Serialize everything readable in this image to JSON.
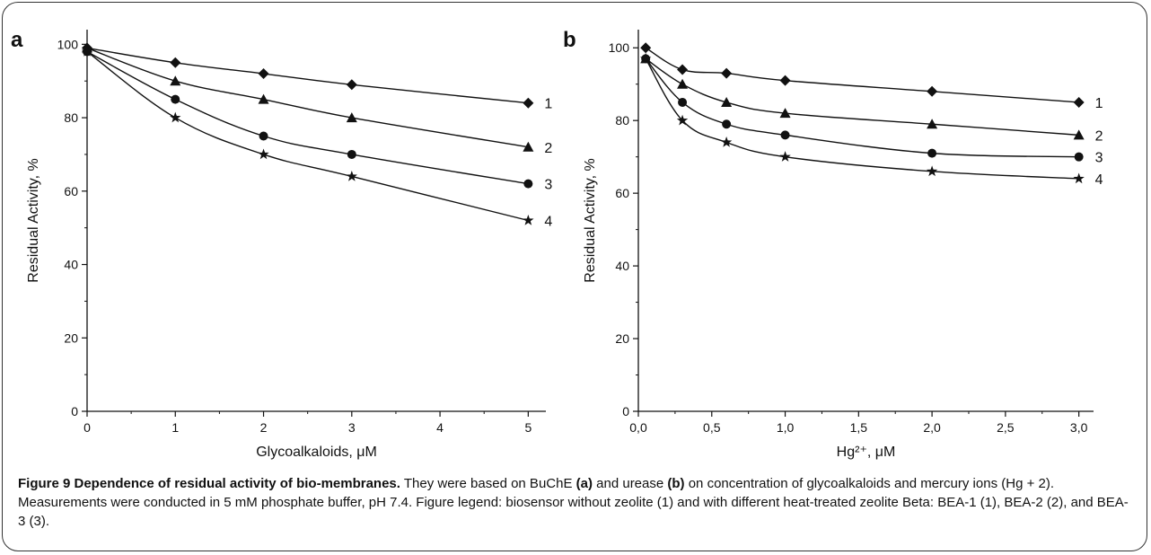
{
  "caption": {
    "figure_title": "Figure 9 Dependence of residual activity of bio-membranes.",
    "text_1": " They were based on BuChE ",
    "ref_a": "(a)",
    "text_2": " and urease ",
    "ref_b": "(b)",
    "text_3": " on concentration of glycoalkaloids and mercury ions (Hg + 2). Measurements were conducted in 5 mM phosphate buffer, pH 7.4. Figure legend: biosensor without zeolite (1) and with different heat-treated zeolite Beta: BEA-1 (1), BEA-2 (2), and BEA-3 (3)."
  },
  "chart_data": [
    {
      "type": "line",
      "panel_label": "a",
      "xlabel": "Glycoalkaloids, μM",
      "ylabel": "Residual Activity, %",
      "xlim": [
        0,
        5.2
      ],
      "ylim": [
        0,
        104
      ],
      "xticks": [
        "0",
        "1",
        "2",
        "3",
        "4",
        "5"
      ],
      "yticks": [
        "0",
        "20",
        "40",
        "60",
        "80",
        "100"
      ],
      "grid": false,
      "series": [
        {
          "name": "1",
          "marker": "diamond",
          "x": [
            0,
            1,
            2,
            3,
            5
          ],
          "y": [
            99,
            95,
            92,
            89,
            84
          ]
        },
        {
          "name": "2",
          "marker": "triangle",
          "x": [
            0,
            1,
            2,
            3,
            5
          ],
          "y": [
            99,
            90,
            85,
            80,
            72
          ]
        },
        {
          "name": "3",
          "marker": "circle",
          "x": [
            0,
            1,
            2,
            3,
            5
          ],
          "y": [
            98,
            85,
            75,
            70,
            62
          ]
        },
        {
          "name": "4",
          "marker": "star",
          "x": [
            0,
            1,
            2,
            3,
            5
          ],
          "y": [
            98,
            80,
            70,
            64,
            52
          ]
        }
      ]
    },
    {
      "type": "line",
      "panel_label": "b",
      "xlabel": "Hg²⁺, μM",
      "ylabel": "Residual Activity, %",
      "xlim": [
        0,
        3.1
      ],
      "ylim": [
        0,
        105
      ],
      "xticks": [
        "0,0",
        "0,5",
        "1,0",
        "1,5",
        "2,0",
        "2,5",
        "3,0"
      ],
      "yticks": [
        "0",
        "20",
        "40",
        "60",
        "80",
        "100"
      ],
      "grid": false,
      "series": [
        {
          "name": "1",
          "marker": "diamond",
          "x": [
            0.05,
            0.3,
            0.6,
            1.0,
            2.0,
            3.0
          ],
          "y": [
            100,
            94,
            93,
            91,
            88,
            85
          ]
        },
        {
          "name": "2",
          "marker": "triangle",
          "x": [
            0.05,
            0.3,
            0.6,
            1.0,
            2.0,
            3.0
          ],
          "y": [
            97,
            90,
            85,
            82,
            79,
            76
          ]
        },
        {
          "name": "3",
          "marker": "circle",
          "x": [
            0.05,
            0.3,
            0.6,
            1.0,
            2.0,
            3.0
          ],
          "y": [
            97,
            85,
            79,
            76,
            71,
            70
          ]
        },
        {
          "name": "4",
          "marker": "star",
          "x": [
            0.05,
            0.3,
            0.6,
            1.0,
            2.0,
            3.0
          ],
          "y": [
            97,
            80,
            74,
            70,
            66,
            64
          ]
        }
      ]
    }
  ]
}
